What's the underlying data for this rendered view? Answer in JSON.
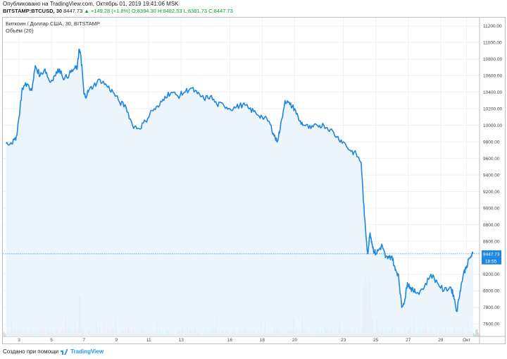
{
  "header": {
    "published": "Опубликовано на TradingView.com, Октябрь 01, 2019 19:41:06 MSK",
    "symbol": "BITSTAMP:BTCUSD, 30",
    "last": "8447.73",
    "change": "▲ +149.28 (+1.8%)",
    "open": "O:8394.30",
    "high": "H:8482.53",
    "low": "L:8381.73",
    "close": "C:8447.73"
  },
  "legend": {
    "title": "Биткоин / Доллар США, 30, BITSTAMP",
    "volume": "Объём (20)"
  },
  "footer": {
    "created_with": "Создано при помощи",
    "brand": "TradingView"
  },
  "price_labels": {
    "last_price": "8447.73",
    "countdown": "18:55"
  },
  "colors": {
    "line": "#1f86e0",
    "area": "#e9f3fc",
    "price_tag": "#1f86e0",
    "vol_up": "#9fd9c0",
    "vol_down": "#f2aeb0",
    "grid": "#eef1f5"
  },
  "chart_data": {
    "type": "area",
    "yticks": [
      "11200.00",
      "11000.00",
      "10800.00",
      "10600.00",
      "10400.00",
      "10200.00",
      "10000.00",
      "9800.00",
      "9600.00",
      "9400.00",
      "9200.00",
      "9000.00",
      "8800.00",
      "8600.00",
      "8400.00",
      "8200.00",
      "8000.00",
      "7800.00",
      "7600.00"
    ],
    "xticks": [
      "3",
      "5",
      "7",
      "9",
      "11",
      "13",
      "16",
      "18",
      "20",
      "23",
      "25",
      "27",
      "29",
      "Окт"
    ],
    "ylim": [
      7450,
      11300
    ],
    "grid": true,
    "series": [
      {
        "x": [
          2.2,
          2.5,
          2.8,
          3.0,
          3.2,
          3.5,
          3.8,
          4.0,
          4.3,
          4.6,
          4.9,
          5.2,
          5.5,
          5.8,
          6.1,
          6.4,
          6.6,
          6.7,
          6.8,
          6.9,
          7.0,
          7.1,
          7.3,
          7.6,
          8.0,
          8.4,
          8.8,
          9.2,
          9.6,
          10.0,
          10.4,
          10.8,
          11.2,
          11.6,
          12.0,
          12.4,
          12.8,
          13.2,
          13.6,
          14.0,
          14.4,
          14.8,
          15.2,
          15.6,
          16.0,
          16.4,
          16.8,
          17.2,
          17.6,
          18.0,
          18.4,
          18.7,
          18.9,
          19.1,
          19.4,
          19.7,
          20.0,
          20.3,
          20.6,
          21.0,
          21.4,
          21.8,
          22.2,
          22.6,
          23.0,
          23.4,
          23.8,
          24.1,
          24.3,
          24.5,
          24.65,
          24.75,
          24.85,
          25.0,
          25.2,
          25.4,
          25.6,
          25.8,
          26.0,
          26.2,
          26.4,
          26.6,
          26.8,
          26.95,
          27.1,
          27.3,
          27.6,
          28.0,
          28.4,
          28.8,
          29.2,
          29.6,
          29.8,
          30.0,
          30.2,
          30.4,
          30.6,
          30.8,
          31.0
        ],
        "y": [
          9780,
          9790,
          9820,
          10100,
          10450,
          10500,
          10420,
          10720,
          10600,
          10680,
          10520,
          10600,
          10680,
          10560,
          10620,
          10680,
          10700,
          10920,
          10850,
          10650,
          10380,
          10350,
          10420,
          10480,
          10550,
          10480,
          10400,
          10280,
          10220,
          10000,
          9960,
          10050,
          10180,
          10220,
          10350,
          10400,
          10350,
          10400,
          10450,
          10380,
          10320,
          10350,
          10250,
          10250,
          10200,
          10220,
          10250,
          10200,
          10150,
          10100,
          10050,
          9900,
          9800,
          9950,
          10300,
          10250,
          10200,
          10050,
          10000,
          9960,
          10000,
          10000,
          9950,
          9860,
          9800,
          9700,
          9650,
          9550,
          8900,
          8450,
          8700,
          8600,
          8500,
          8450,
          8500,
          8550,
          8400,
          8400,
          8420,
          8250,
          8200,
          7800,
          7900,
          8100,
          8050,
          8000,
          7980,
          8050,
          8200,
          8100,
          8000,
          8050,
          7950,
          7750,
          8000,
          8200,
          8300,
          8400,
          8447.73
        ]
      }
    ]
  }
}
